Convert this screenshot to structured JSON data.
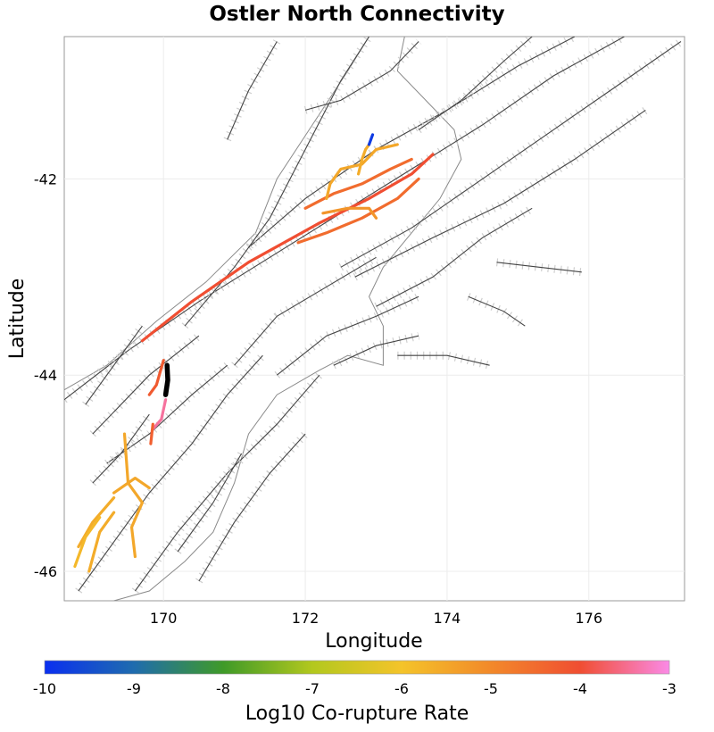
{
  "chart_data": {
    "type": "map",
    "title": "Ostler North Connectivity",
    "xlabel": "Longitude",
    "ylabel": "Latitude",
    "xlim": [
      168.6,
      177.35
    ],
    "ylim": [
      -46.3,
      -40.55
    ],
    "x_ticks": [
      170,
      172,
      174,
      176
    ],
    "y_ticks": [
      -42,
      -44,
      -46
    ],
    "grid": true,
    "colorbar": {
      "label": "Log10 Co-rupture Rate",
      "range": [
        -10,
        -3
      ],
      "ticks": [
        -10,
        -9,
        -8,
        -7,
        -6,
        -5,
        -4,
        -3
      ],
      "stops": [
        {
          "value": -10,
          "color": "#0a2ff0"
        },
        {
          "value": -9,
          "color": "#1f6cae"
        },
        {
          "value": -8,
          "color": "#3f9a28"
        },
        {
          "value": -7,
          "color": "#b3c81e"
        },
        {
          "value": -6,
          "color": "#f4c42a"
        },
        {
          "value": -5,
          "color": "#f2892a"
        },
        {
          "value": -4,
          "color": "#f04e32"
        },
        {
          "value": -3,
          "color": "#fa8ae6"
        }
      ]
    },
    "source_fault": {
      "name": "Ostler North",
      "color": "#000000",
      "coords": [
        [
          170.05,
          -43.9
        ],
        [
          170.06,
          -44.05
        ],
        [
          170.03,
          -44.2
        ]
      ]
    },
    "coruptures": [
      {
        "log10_rate": -4.0,
        "coords": [
          [
            169.7,
            -43.65
          ],
          [
            170.4,
            -43.25
          ],
          [
            171.2,
            -42.85
          ],
          [
            172.2,
            -42.45
          ],
          [
            172.9,
            -42.2
          ],
          [
            173.5,
            -41.95
          ],
          [
            173.8,
            -41.75
          ]
        ]
      },
      {
        "log10_rate": -4.5,
        "coords": [
          [
            172.0,
            -42.3
          ],
          [
            172.4,
            -42.15
          ],
          [
            172.8,
            -42.05
          ],
          [
            173.2,
            -41.9
          ],
          [
            173.5,
            -41.8
          ]
        ]
      },
      {
        "log10_rate": -4.5,
        "coords": [
          [
            171.9,
            -42.65
          ],
          [
            172.3,
            -42.55
          ],
          [
            172.8,
            -42.4
          ],
          [
            173.3,
            -42.2
          ],
          [
            173.6,
            -42.0
          ]
        ]
      },
      {
        "log10_rate": -5.2,
        "coords": [
          [
            172.25,
            -42.35
          ],
          [
            172.6,
            -42.3
          ],
          [
            172.9,
            -42.3
          ],
          [
            173.0,
            -42.4
          ]
        ]
      },
      {
        "log10_rate": -5.5,
        "coords": [
          [
            172.3,
            -42.2
          ],
          [
            172.35,
            -42.05
          ],
          [
            172.5,
            -41.9
          ],
          [
            172.8,
            -41.85
          ],
          [
            173.0,
            -41.7
          ],
          [
            173.3,
            -41.65
          ]
        ]
      },
      {
        "log10_rate": -5.6,
        "coords": [
          [
            172.75,
            -41.95
          ],
          [
            172.8,
            -41.8
          ],
          [
            172.85,
            -41.7
          ],
          [
            172.9,
            -41.65
          ]
        ]
      },
      {
        "log10_rate": -9.8,
        "coords": [
          [
            172.9,
            -41.65
          ],
          [
            172.95,
            -41.55
          ]
        ]
      },
      {
        "log10_rate": -4.2,
        "coords": [
          [
            169.8,
            -44.2
          ],
          [
            169.9,
            -44.1
          ],
          [
            170.0,
            -43.85
          ]
        ]
      },
      {
        "log10_rate": -3.4,
        "coords": [
          [
            170.03,
            -44.25
          ],
          [
            169.97,
            -44.45
          ],
          [
            169.85,
            -44.55
          ]
        ]
      },
      {
        "log10_rate": -4.3,
        "coords": [
          [
            169.85,
            -44.5
          ],
          [
            169.82,
            -44.7
          ]
        ]
      },
      {
        "log10_rate": -5.5,
        "coords": [
          [
            169.45,
            -44.6
          ],
          [
            169.5,
            -45.1
          ],
          [
            169.7,
            -45.3
          ],
          [
            169.55,
            -45.55
          ],
          [
            169.6,
            -45.85
          ]
        ]
      },
      {
        "log10_rate": -5.5,
        "coords": [
          [
            169.3,
            -45.2
          ],
          [
            169.6,
            -45.05
          ],
          [
            169.8,
            -45.15
          ]
        ]
      },
      {
        "log10_rate": -5.6,
        "coords": [
          [
            168.8,
            -45.75
          ],
          [
            169.0,
            -45.5
          ],
          [
            169.3,
            -45.25
          ]
        ]
      },
      {
        "log10_rate": -5.6,
        "coords": [
          [
            168.95,
            -46.0
          ],
          [
            169.1,
            -45.6
          ],
          [
            169.3,
            -45.4
          ]
        ]
      },
      {
        "log10_rate": -5.8,
        "coords": [
          [
            168.75,
            -45.95
          ],
          [
            168.9,
            -45.65
          ],
          [
            169.1,
            -45.45
          ]
        ]
      }
    ],
    "background_faults": [
      [
        [
          168.6,
          -44.25
        ],
        [
          169.5,
          -43.75
        ],
        [
          170.5,
          -43.25
        ],
        [
          171.5,
          -42.8
        ],
        [
          172.5,
          -42.35
        ],
        [
          173.5,
          -41.9
        ],
        [
          174.5,
          -41.45
        ],
        [
          175.5,
          -40.95
        ],
        [
          176.5,
          -40.55
        ]
      ],
      [
        [
          171.2,
          -42.7
        ],
        [
          172.0,
          -42.2
        ],
        [
          173.0,
          -41.7
        ],
        [
          174.0,
          -41.3
        ],
        [
          175.0,
          -40.85
        ],
        [
          175.8,
          -40.55
        ]
      ],
      [
        [
          170.3,
          -43.5
        ],
        [
          171.0,
          -42.9
        ],
        [
          171.5,
          -42.4
        ],
        [
          172.0,
          -41.7
        ],
        [
          172.5,
          -41.0
        ],
        [
          172.9,
          -40.55
        ]
      ],
      [
        [
          169.0,
          -44.6
        ],
        [
          169.8,
          -44.0
        ],
        [
          170.5,
          -43.6
        ]
      ],
      [
        [
          172.5,
          -42.9
        ],
        [
          173.5,
          -42.5
        ],
        [
          174.5,
          -42.0
        ],
        [
          175.5,
          -41.5
        ],
        [
          176.5,
          -41.0
        ],
        [
          177.3,
          -40.6
        ]
      ],
      [
        [
          172.7,
          -43.0
        ],
        [
          173.8,
          -42.6
        ],
        [
          174.8,
          -42.25
        ],
        [
          175.8,
          -41.8
        ],
        [
          176.8,
          -41.3
        ]
      ],
      [
        [
          173.0,
          -43.3
        ],
        [
          173.8,
          -43.0
        ],
        [
          174.5,
          -42.6
        ],
        [
          175.2,
          -42.3
        ]
      ],
      [
        [
          174.7,
          -42.85
        ],
        [
          175.3,
          -42.9
        ],
        [
          175.9,
          -42.95
        ]
      ],
      [
        [
          173.3,
          -43.8
        ],
        [
          174.0,
          -43.8
        ],
        [
          174.6,
          -43.9
        ]
      ],
      [
        [
          174.3,
          -43.2
        ],
        [
          174.8,
          -43.35
        ],
        [
          175.1,
          -43.5
        ]
      ],
      [
        [
          168.8,
          -46.2
        ],
        [
          169.3,
          -45.7
        ],
        [
          169.8,
          -45.2
        ],
        [
          170.4,
          -44.7
        ],
        [
          170.9,
          -44.2
        ],
        [
          171.4,
          -43.8
        ]
      ],
      [
        [
          169.6,
          -46.2
        ],
        [
          170.2,
          -45.6
        ],
        [
          170.9,
          -45.0
        ],
        [
          171.6,
          -44.5
        ],
        [
          172.2,
          -44.0
        ]
      ],
      [
        [
          170.5,
          -46.1
        ],
        [
          171.0,
          -45.5
        ],
        [
          171.5,
          -45.0
        ],
        [
          172.0,
          -44.6
        ]
      ],
      [
        [
          171.0,
          -43.9
        ],
        [
          171.6,
          -43.4
        ],
        [
          172.3,
          -43.1
        ],
        [
          173.0,
          -42.8
        ]
      ],
      [
        [
          171.6,
          -44.0
        ],
        [
          172.3,
          -43.6
        ],
        [
          173.0,
          -43.4
        ],
        [
          173.6,
          -43.2
        ]
      ],
      [
        [
          172.4,
          -43.9
        ],
        [
          173.0,
          -43.7
        ],
        [
          173.6,
          -43.6
        ]
      ],
      [
        [
          169.2,
          -44.9
        ],
        [
          169.8,
          -44.6
        ],
        [
          170.4,
          -44.2
        ],
        [
          170.9,
          -43.9
        ]
      ],
      [
        [
          168.9,
          -44.3
        ],
        [
          169.3,
          -43.9
        ],
        [
          169.7,
          -43.5
        ]
      ],
      [
        [
          170.9,
          -41.6
        ],
        [
          171.2,
          -41.1
        ],
        [
          171.6,
          -40.6
        ]
      ],
      [
        [
          172.0,
          -41.3
        ],
        [
          172.5,
          -41.2
        ],
        [
          173.2,
          -40.9
        ],
        [
          173.6,
          -40.6
        ]
      ],
      [
        [
          173.6,
          -41.5
        ],
        [
          174.2,
          -41.2
        ],
        [
          174.8,
          -40.8
        ],
        [
          175.2,
          -40.55
        ]
      ],
      [
        [
          170.2,
          -45.8
        ],
        [
          170.7,
          -45.3
        ],
        [
          171.1,
          -44.8
        ]
      ],
      [
        [
          169.0,
          -45.1
        ],
        [
          169.4,
          -44.8
        ],
        [
          169.8,
          -44.4
        ]
      ]
    ],
    "coastline": [
      [
        [
          168.6,
          -44.15
        ],
        [
          169.2,
          -43.9
        ],
        [
          169.9,
          -43.45
        ],
        [
          170.6,
          -43.05
        ],
        [
          171.3,
          -42.55
        ],
        [
          171.6,
          -42.0
        ],
        [
          172.1,
          -41.45
        ],
        [
          172.6,
          -40.9
        ],
        [
          172.9,
          -40.55
        ]
      ],
      [
        [
          173.4,
          -40.55
        ],
        [
          173.3,
          -40.9
        ],
        [
          173.7,
          -41.2
        ],
        [
          174.1,
          -41.5
        ],
        [
          174.2,
          -41.8
        ],
        [
          173.9,
          -42.2
        ],
        [
          173.5,
          -42.55
        ],
        [
          173.1,
          -42.9
        ],
        [
          172.9,
          -43.2
        ],
        [
          173.1,
          -43.5
        ],
        [
          173.1,
          -43.9
        ],
        [
          172.6,
          -43.8
        ],
        [
          172.2,
          -43.95
        ],
        [
          171.6,
          -44.2
        ],
        [
          171.2,
          -44.6
        ],
        [
          171.0,
          -45.1
        ],
        [
          170.7,
          -45.6
        ],
        [
          170.3,
          -45.9
        ],
        [
          169.8,
          -46.2
        ],
        [
          169.3,
          -46.3
        ]
      ]
    ]
  }
}
